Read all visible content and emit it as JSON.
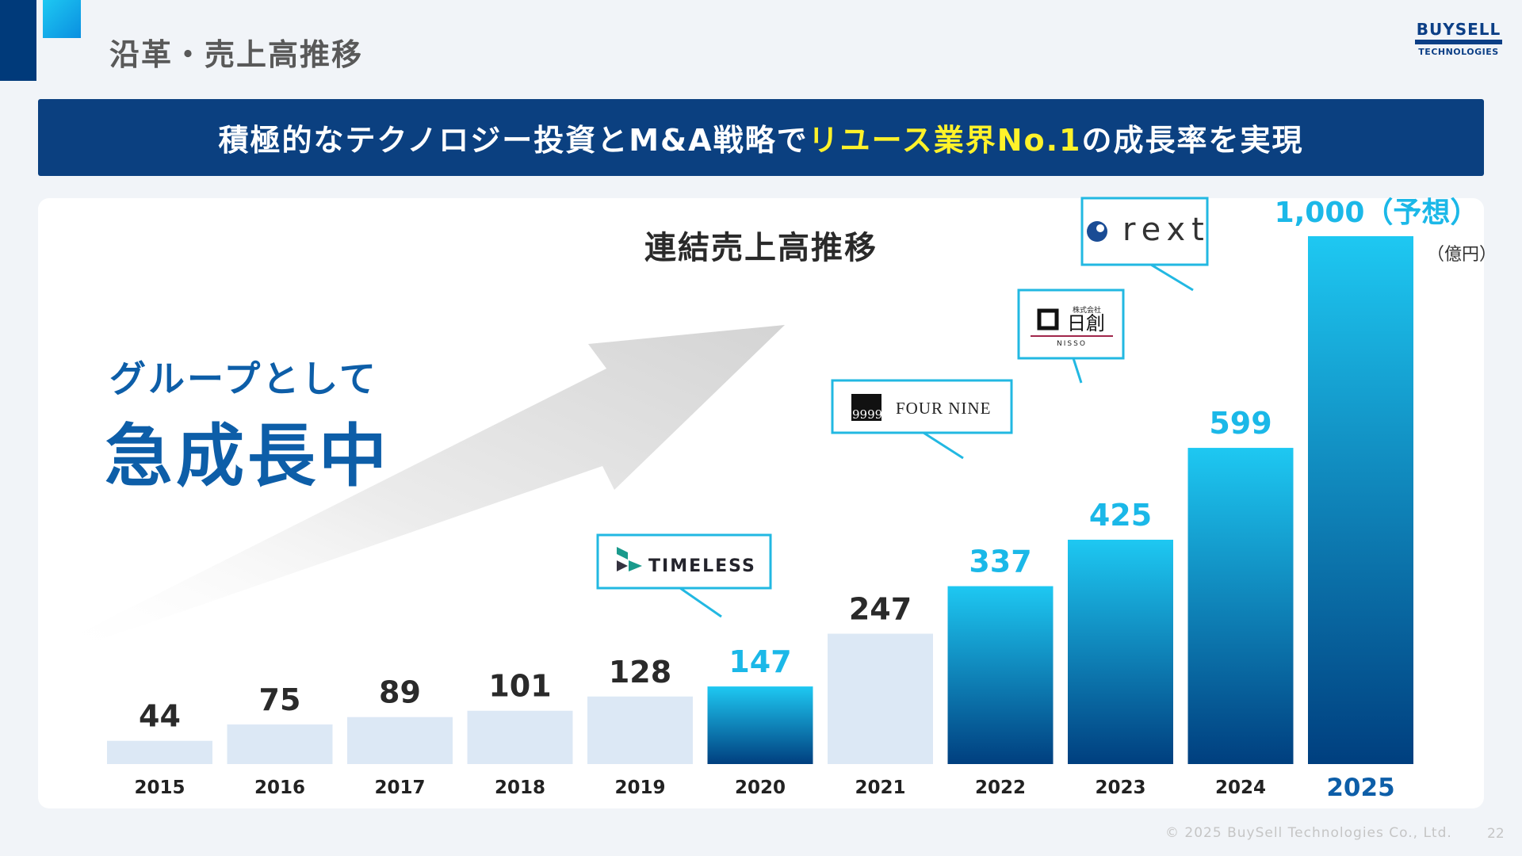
{
  "header": {
    "title": "沿革・売上高推移",
    "brand_name": "BUYSELL",
    "brand_sub": "TECHNOLOGIES"
  },
  "banner": {
    "text_before": "積極的なテクノロジー投資とM&A戦略で",
    "text_highlight": "リユース業界No.1",
    "text_after": "の成長率を実現",
    "highlight_color": "#fff22a"
  },
  "slogan": {
    "line1": "グループとして",
    "line2": "急成長中"
  },
  "acquisitions": {
    "timeless": "TIMELESS",
    "fournine_mark": "9999",
    "fournine": "FOUR NINE",
    "nisso_small": "株式会社",
    "nisso_main": "日創",
    "nisso_en": "NISSO",
    "rext": "rext"
  },
  "chart_data": {
    "type": "bar",
    "title": "連結売上高推移",
    "unit_label": "（億円）",
    "categories": [
      "2015",
      "2016",
      "2017",
      "2018",
      "2019",
      "2020",
      "2021",
      "2022",
      "2023",
      "2024",
      "2025"
    ],
    "values": [
      44,
      75,
      89,
      101,
      128,
      147,
      247,
      337,
      425,
      599,
      1000
    ],
    "value_labels": [
      "44",
      "75",
      "89",
      "101",
      "128",
      "147",
      "247",
      "337",
      "425",
      "599",
      "1,000（予想）"
    ],
    "highlighted": [
      false,
      false,
      false,
      false,
      false,
      true,
      false,
      true,
      true,
      true,
      true
    ],
    "ylim": [
      0,
      1000
    ],
    "grid": false,
    "colors": {
      "muted": "#dce8f5",
      "accent_top": "#1ec8f2",
      "accent_bottom": "#003f7f",
      "accent_label": "#1bb8e8",
      "dark_label": "#2a2a2a",
      "emphasis_year": "#0d5ea8"
    }
  },
  "footer": {
    "copyright": "© 2025 BuySell Technologies Co., Ltd.",
    "page": "22"
  }
}
